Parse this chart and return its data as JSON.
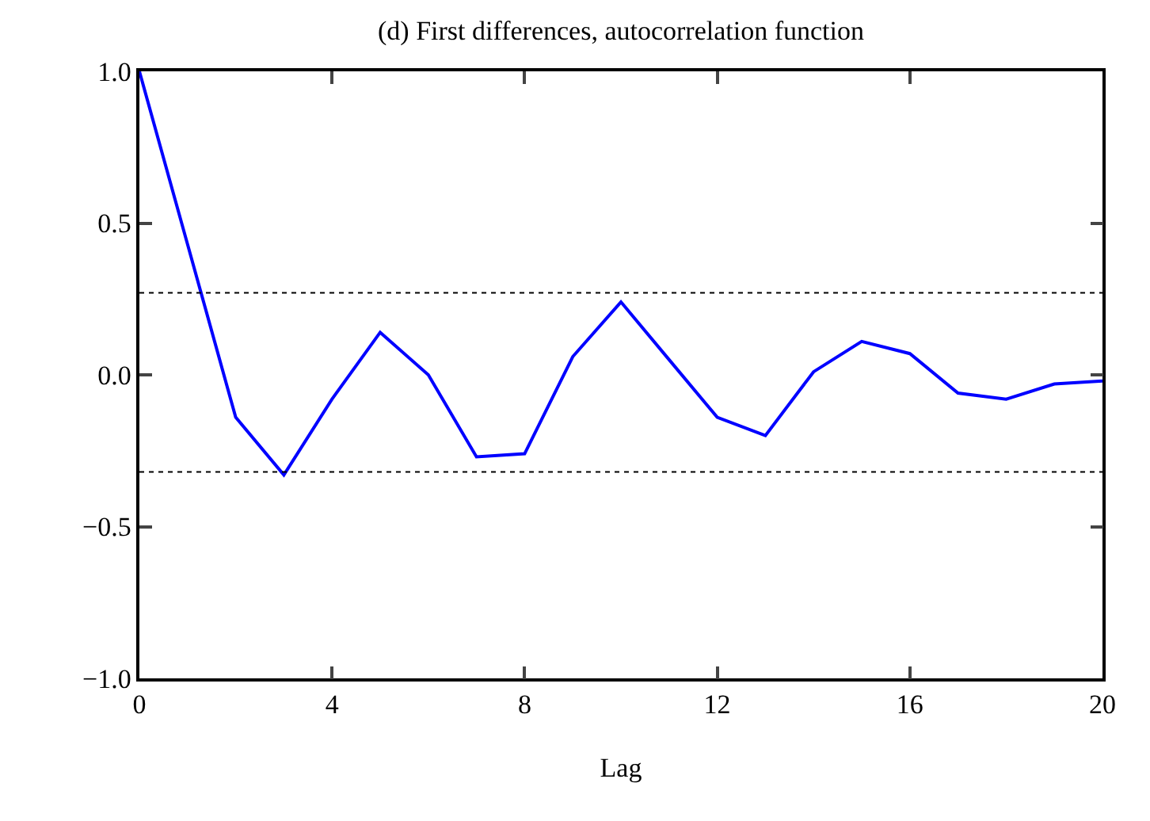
{
  "chart_data": {
    "type": "line",
    "title": "(d) First differences, autocorrelation function",
    "xlabel": "Lag",
    "x": [
      0,
      1,
      2,
      3,
      4,
      5,
      6,
      7,
      8,
      9,
      10,
      11,
      12,
      13,
      14,
      15,
      16,
      17,
      18,
      19,
      20
    ],
    "series": [
      {
        "color": "#0000ff",
        "values": [
          1.0,
          0.43,
          -0.14,
          -0.33,
          -0.08,
          0.14,
          0.0,
          -0.27,
          -0.26,
          0.06,
          0.24,
          0.05,
          -0.14,
          -0.2,
          0.01,
          0.11,
          0.07,
          -0.06,
          -0.08,
          -0.03,
          -0.02
        ]
      }
    ],
    "xlim": [
      0,
      20
    ],
    "xticks": [
      0,
      4,
      8,
      12,
      16,
      20
    ],
    "ylim": [
      -1.0,
      1.0
    ],
    "yticks": [
      {
        "value": -1.0,
        "label": "−1.0"
      },
      {
        "value": -0.5,
        "label": "−0.5"
      },
      {
        "value": 0.0,
        "label": "0.0"
      },
      {
        "value": 0.5,
        "label": "0.5"
      },
      {
        "value": 1.0,
        "label": "1.0"
      }
    ],
    "ref_lines": [
      {
        "axis": "y",
        "value": 0.27,
        "color": "#000000",
        "line_style": "dotted"
      },
      {
        "axis": "y",
        "value": -0.32,
        "color": "#000000",
        "line_style": "dotted"
      }
    ],
    "legend": false,
    "marker": "none",
    "line_style": "solid"
  }
}
